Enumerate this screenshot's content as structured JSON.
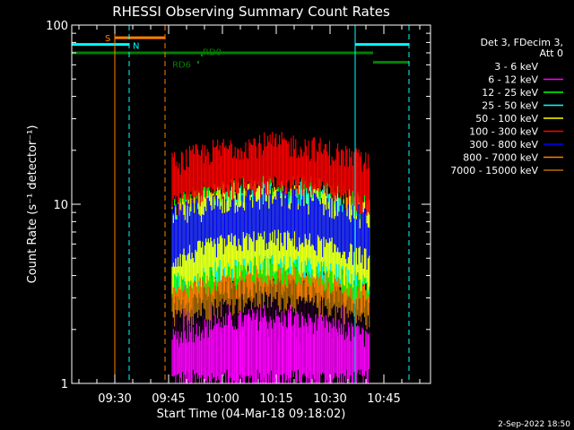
{
  "chart_data": {
    "type": "line",
    "title": "RHESSI Observing Summary Count Rates",
    "xlabel": "Start Time (04-Mar-18 09:18:02)",
    "ylabel": "Count Rate (s⁻¹ detector⁻¹)",
    "x_ticks": [
      "09:30",
      "09:45",
      "10:00",
      "10:15",
      "10:30",
      "10:45"
    ],
    "y_ticks": [
      "1",
      "10",
      "100"
    ],
    "y_scale": "log",
    "ylim": [
      1,
      100
    ],
    "xlim_minutes_after_0918": [
      0,
      100
    ],
    "grid": false,
    "legend_position": "top-right",
    "legend_header": [
      "Det 3, FDecim 3,",
      "Att 0"
    ],
    "series": [
      {
        "name": "3 - 6 keV",
        "color": "#000000",
        "x_start": 28,
        "x_end": 83,
        "lo": 2.0,
        "hi": 5.0
      },
      {
        "name": "6 - 12 keV",
        "color": "#ff00ff",
        "x_start": 28,
        "x_end": 83,
        "lo": 1.0,
        "hi": 3.0
      },
      {
        "name": "12 - 25 keV",
        "color": "#00ff00",
        "x_start": 28,
        "x_end": 83,
        "lo": 3.5,
        "hi": 13.0
      },
      {
        "name": "25 - 50 keV",
        "color": "#00ffff",
        "x_start": 28,
        "x_end": 83,
        "lo": 4.0,
        "hi": 12.0
      },
      {
        "name": "50 - 100 keV",
        "color": "#ffff00",
        "x_start": 28,
        "x_end": 83,
        "lo": 4.0,
        "hi": 12.0
      },
      {
        "name": "100 - 300 keV",
        "color": "#ff0000",
        "x_start": 28,
        "x_end": 83,
        "lo": 11.0,
        "hi": 22.0
      },
      {
        "name": "300 - 800 keV",
        "color": "#0000ff",
        "x_start": 28,
        "x_end": 83,
        "lo": 5.5,
        "hi": 11.0
      },
      {
        "name": "800 - 7000 keV",
        "color": "#ff8000",
        "x_start": 28,
        "x_end": 83,
        "lo": 3.0,
        "hi": 5.0
      },
      {
        "name": "7000 - 15000 keV",
        "color": "#b07000",
        "x_start": 28,
        "x_end": 83,
        "lo": 2.5,
        "hi": 4.5
      }
    ],
    "flags": [
      {
        "label": "S",
        "color": "#ff8000",
        "x_start": 12,
        "x_end": 26,
        "y": 85
      },
      {
        "label": "N",
        "color": "#00ffff",
        "x_start": 0,
        "x_end": 16,
        "y": 78
      },
      {
        "label": "",
        "color": "#00ffff",
        "x_start": 79,
        "x_end": 94,
        "y": 78
      },
      {
        "label": "",
        "color": "#008000",
        "x_start": 0,
        "x_end": 84,
        "y": 70
      },
      {
        "label": "",
        "color": "#008000",
        "x_start": 84,
        "x_end": 94,
        "y": 62
      },
      {
        "label": "RD6",
        "color": "#008000",
        "x_start": 35,
        "x_end": 35.5,
        "y": 62
      },
      {
        "label": "RD0",
        "color": "#008000",
        "x_start": 36,
        "x_end": 36.5,
        "y": 68
      }
    ],
    "markers": [
      {
        "x": 12,
        "color": "#ff8000",
        "style": "solid"
      },
      {
        "x": 26,
        "color": "#ff8000",
        "style": "dashed"
      },
      {
        "x": 16,
        "color": "#00ffff",
        "style": "dashed"
      },
      {
        "x": 79,
        "color": "#00ffff",
        "style": "solid"
      },
      {
        "x": 94,
        "color": "#00ffff",
        "style": "dashed"
      },
      {
        "x": 0,
        "color": "#00ffff",
        "style": "solid"
      }
    ],
    "timestamp": "2-Sep-2022 18:50"
  }
}
